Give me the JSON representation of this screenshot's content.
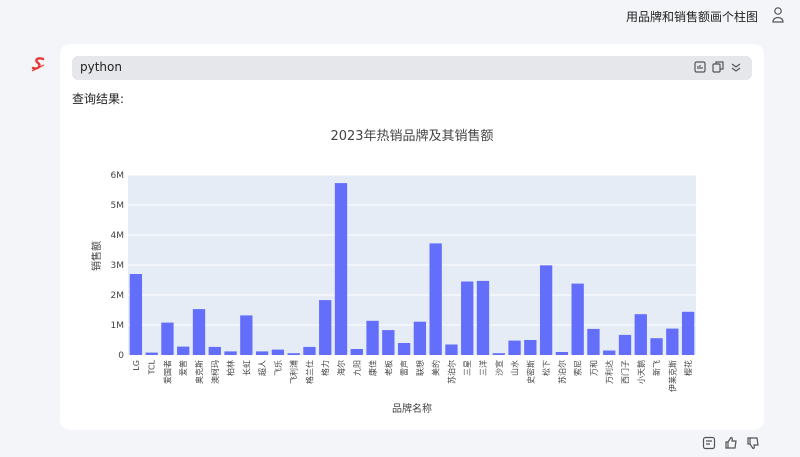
{
  "user_message": "用品牌和销售额画个柱图",
  "code_block": {
    "language": "python"
  },
  "result_label": "查询结果:",
  "chart_data": {
    "type": "bar",
    "title": "2023年热销品牌及其销售额",
    "xlabel": "品牌名称",
    "ylabel": "销售额",
    "ylim": [
      0,
      6000000
    ],
    "yticks": [
      0,
      1000000,
      2000000,
      3000000,
      4000000,
      5000000,
      6000000
    ],
    "ytick_labels": [
      "0",
      "1M",
      "2M",
      "3M",
      "4M",
      "5M",
      "6M"
    ],
    "categories": [
      "LG",
      "TCL",
      "爱国者",
      "爱普",
      "奥克斯",
      "澳柯玛",
      "柏林",
      "长虹",
      "超人",
      "飞乐",
      "飞利浦",
      "格兰仕",
      "格力",
      "海尔",
      "九阳",
      "康佳",
      "老板",
      "雷声",
      "联想",
      "美的",
      "苏泊尔",
      "三星",
      "三洋",
      "沙宣",
      "山水",
      "史密斯",
      "松下",
      "苏泊尔",
      "索尼",
      "万和",
      "万利达",
      "西门子",
      "小天鹅",
      "新飞",
      "伊莱克斯",
      "樱花"
    ],
    "values": [
      2700000,
      80000,
      1080000,
      280000,
      1530000,
      270000,
      120000,
      1320000,
      120000,
      180000,
      60000,
      270000,
      1830000,
      5730000,
      200000,
      1140000,
      830000,
      400000,
      1110000,
      3720000,
      350000,
      2450000,
      2470000,
      60000,
      480000,
      500000,
      2990000,
      100000,
      2380000,
      870000,
      150000,
      670000,
      1360000,
      560000,
      880000,
      1440000
    ],
    "colors": {
      "bar": "#636efa",
      "plot_bg": "#e5ecf6",
      "grid": "#ffffff"
    }
  }
}
